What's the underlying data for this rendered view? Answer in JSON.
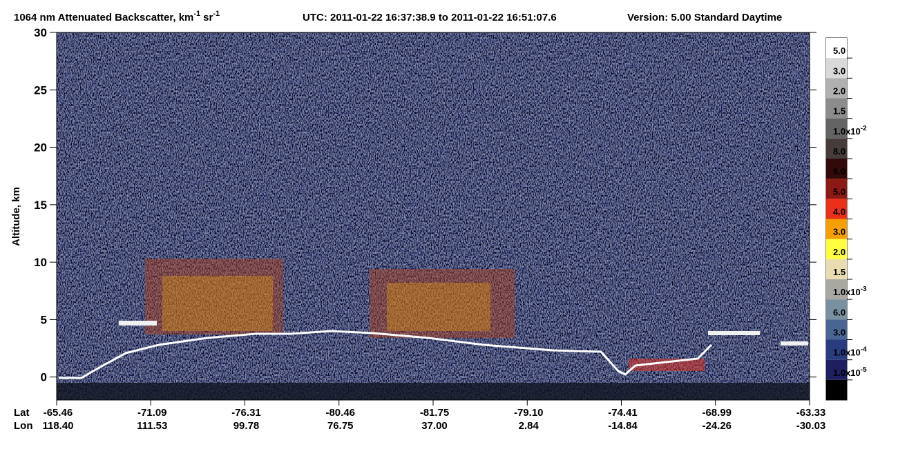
{
  "chart_data": {
    "type": "heatmap",
    "title": {
      "prefix": "1064 nm Attenuated Backscatter, km",
      "exp1": "-1",
      "mid": "sr",
      "exp2": "-1"
    },
    "subtitle": "UTC:  2011-01-22 16:37:38.9  to  2011-01-22 16:51:07.6",
    "version": "Version: 5.00  Standard  Daytime",
    "ylabel": "Altitude, km",
    "ylim": [
      -2,
      30
    ],
    "yticks": [
      0,
      5,
      10,
      15,
      20,
      25,
      30
    ],
    "x_row_labels": [
      "Lat",
      "Lon"
    ],
    "lat": [
      "-65.46",
      "-71.09",
      "-76.31",
      "-80.46",
      "-81.75",
      "-79.10",
      "-74.41",
      "-68.99",
      "-63.33"
    ],
    "lon": [
      "118.40",
      "111.53",
      "99.78",
      "76.75",
      "37.00",
      "2.84",
      "-14.84",
      "-24.26",
      "-30.03"
    ],
    "colorbar": [
      {
        "value": 0.05,
        "label": "5.0",
        "color": "#ffffff"
      },
      {
        "value": 0.03,
        "label": "3.0",
        "color": "#d9d9d9"
      },
      {
        "value": 0.02,
        "label": "2.0",
        "color": "#b0b0b0"
      },
      {
        "value": 0.015,
        "label": "1.5",
        "color": "#8c8c8c"
      },
      {
        "value": 0.01,
        "label": "1.0x10",
        "exp": "-2",
        "color": "#646464"
      },
      {
        "value": 0.008,
        "label": "8.0",
        "color": "#463c3a"
      },
      {
        "value": 0.006,
        "label": "6.0",
        "color": "#320a0a"
      },
      {
        "value": 0.005,
        "label": "5.0",
        "color": "#8c1a14"
      },
      {
        "value": 0.004,
        "label": "4.0",
        "color": "#e8301a"
      },
      {
        "value": 0.003,
        "label": "3.0",
        "color": "#f5a000"
      },
      {
        "value": 0.002,
        "label": "2.0",
        "color": "#ffff40"
      },
      {
        "value": 0.0015,
        "label": "1.5",
        "color": "#e8dcb0"
      },
      {
        "value": 0.001,
        "label": "1.0x10",
        "exp": "-3",
        "color": "#a8a8a0"
      },
      {
        "value": 0.0006,
        "label": "6.0",
        "color": "#7890a0"
      },
      {
        "value": 0.0003,
        "label": "3.0",
        "color": "#4a6494"
      },
      {
        "value": 0.0001,
        "label": "1.0x10",
        "exp": "-4",
        "color": "#2a3c80"
      },
      {
        "value": 1e-05,
        "label": "1.0x10",
        "exp": "-5",
        "color": "#1e1e60"
      }
    ],
    "under_color": "#000000"
  }
}
